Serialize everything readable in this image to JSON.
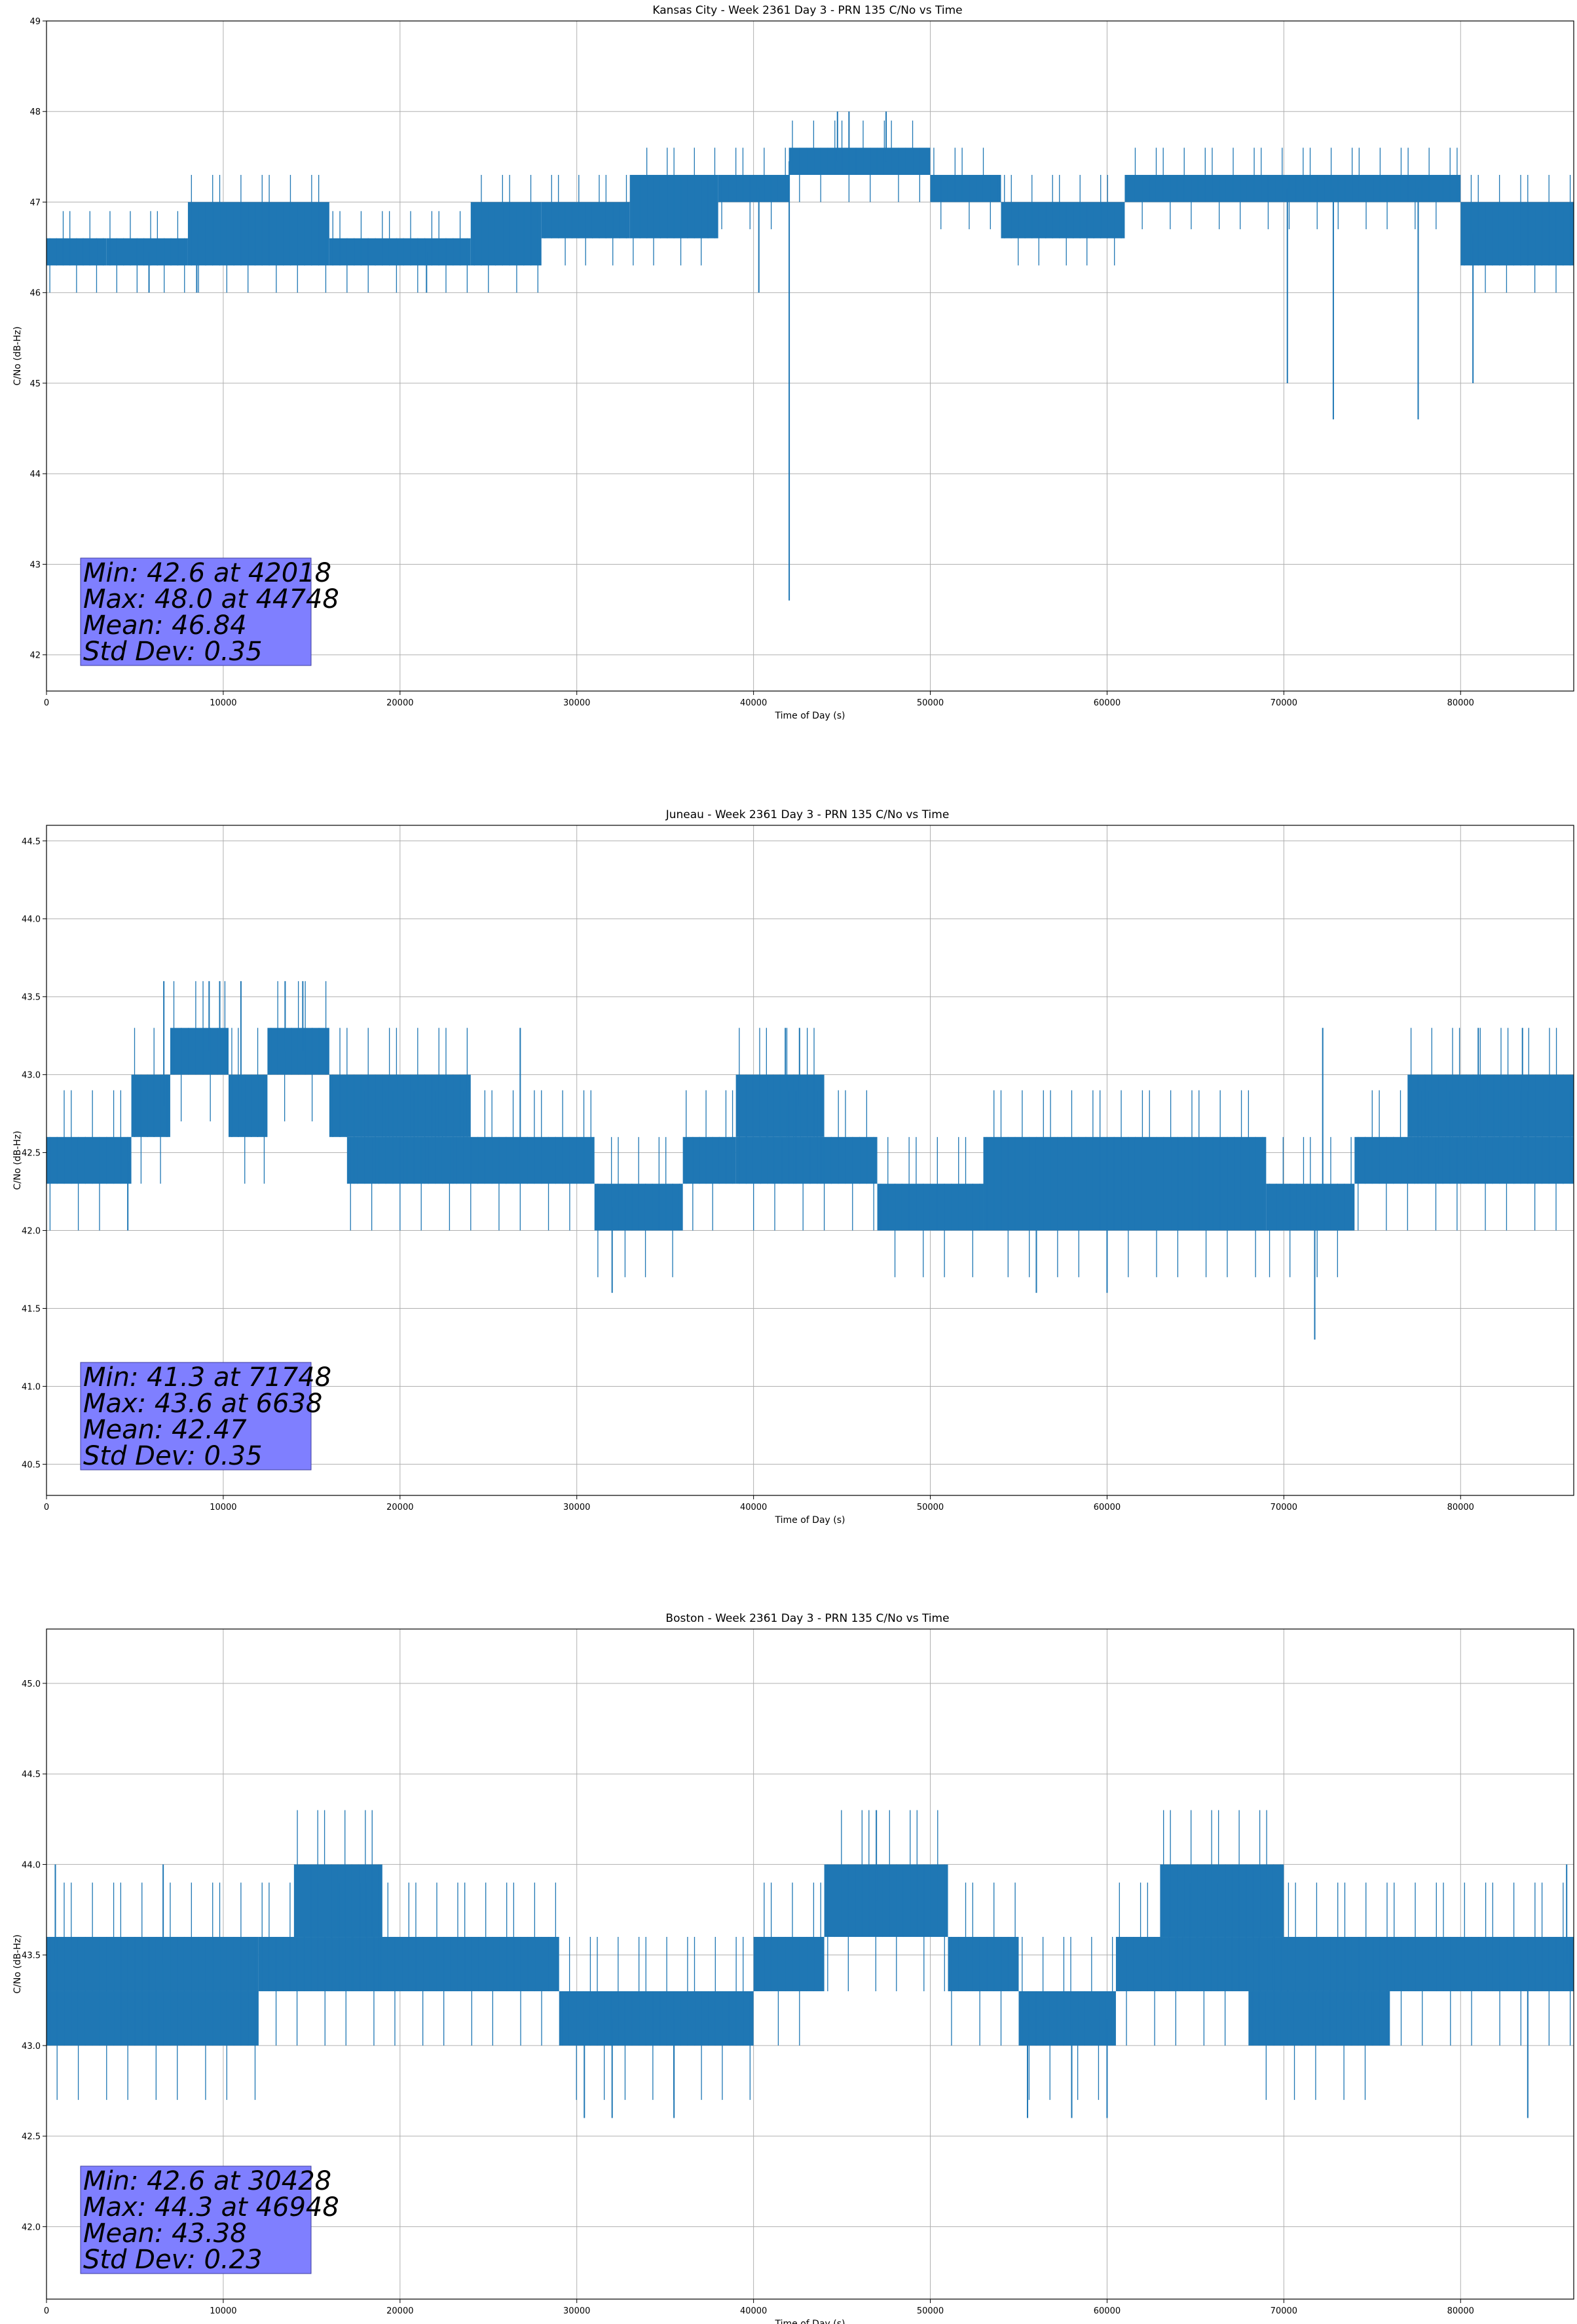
{
  "chart_data": [
    {
      "type": "line",
      "title": "Kansas City - Week 2361 Day 3 - PRN 135 C/No vs Time",
      "xlabel": "Time of Day (s)",
      "ylabel": "C/No (dB-Hz)",
      "xlim": [
        0,
        86400
      ],
      "ylim": [
        41.6,
        49.0
      ],
      "xticks": [
        0,
        10000,
        20000,
        30000,
        40000,
        50000,
        60000,
        70000,
        80000
      ],
      "xtick_labels": [
        "0",
        "10000",
        "20000",
        "30000",
        "40000",
        "50000",
        "60000",
        "70000",
        "80000"
      ],
      "yticks": [
        42,
        43,
        44,
        45,
        46,
        47,
        48,
        49
      ],
      "ytick_labels": [
        "42",
        "43",
        "44",
        "45",
        "46",
        "47",
        "48",
        "49"
      ],
      "grid": true,
      "series": [
        {
          "name": "C/No",
          "color": "#1f77b4",
          "segments": [
            {
              "x": [
                0,
                3400
              ],
              "low": 46.3,
              "high": 46.6
            },
            {
              "x": [
                3400,
                8000
              ],
              "low": 46.3,
              "high": 46.6
            },
            {
              "x": [
                8000,
                16000
              ],
              "low": 46.3,
              "high": 47.0
            },
            {
              "x": [
                16000,
                24000
              ],
              "low": 46.3,
              "high": 46.6
            },
            {
              "x": [
                24000,
                28000
              ],
              "low": 46.3,
              "high": 47.0
            },
            {
              "x": [
                28000,
                33000
              ],
              "low": 46.6,
              "high": 47.0
            },
            {
              "x": [
                33000,
                38000
              ],
              "low": 46.6,
              "high": 47.3
            },
            {
              "x": [
                38000,
                42000
              ],
              "low": 47.0,
              "high": 47.3
            },
            {
              "x": [
                42000,
                50000
              ],
              "low": 47.3,
              "high": 47.6
            },
            {
              "x": [
                50000,
                54000
              ],
              "low": 47.0,
              "high": 47.3
            },
            {
              "x": [
                54000,
                61000
              ],
              "low": 46.6,
              "high": 47.0
            },
            {
              "x": [
                61000,
                80000
              ],
              "low": 47.0,
              "high": 47.3
            },
            {
              "x": [
                80000,
                86400
              ],
              "low": 46.3,
              "high": 47.0
            }
          ],
          "spikes": [
            {
              "x": 42018,
              "y": 42.6
            },
            {
              "x": 40300,
              "y": 46.0
            },
            {
              "x": 44748,
              "y": 48.0
            },
            {
              "x": 45400,
              "y": 48.0
            },
            {
              "x": 47500,
              "y": 48.0
            },
            {
              "x": 70200,
              "y": 45.0
            },
            {
              "x": 72800,
              "y": 44.6
            },
            {
              "x": 77600,
              "y": 44.6
            },
            {
              "x": 80700,
              "y": 45.0
            },
            {
              "x": 5800,
              "y": 46.0
            },
            {
              "x": 8500,
              "y": 46.0
            },
            {
              "x": 21500,
              "y": 46.0
            }
          ]
        }
      ],
      "stats": {
        "lines": [
          "Min: 42.6 at 42018",
          "Max: 48.0 at 44748",
          "Mean: 46.84",
          "Std Dev: 0.35"
        ],
        "box_color": "#7f7fff"
      }
    },
    {
      "type": "line",
      "title": "Juneau - Week 2361 Day 3 - PRN 135 C/No vs Time",
      "xlabel": "Time of Day (s)",
      "ylabel": "C/No (dB-Hz)",
      "xlim": [
        0,
        86400
      ],
      "ylim": [
        40.3,
        44.6
      ],
      "xticks": [
        0,
        10000,
        20000,
        30000,
        40000,
        50000,
        60000,
        70000,
        80000
      ],
      "xtick_labels": [
        "0",
        "10000",
        "20000",
        "30000",
        "40000",
        "50000",
        "60000",
        "70000",
        "80000"
      ],
      "yticks": [
        40.5,
        41.0,
        41.5,
        42.0,
        42.5,
        43.0,
        43.5,
        44.0,
        44.5
      ],
      "ytick_labels": [
        "40.5",
        "41.0",
        "41.5",
        "42.0",
        "42.5",
        "43.0",
        "43.5",
        "44.0",
        "44.5"
      ],
      "grid": true,
      "series": [
        {
          "name": "C/No",
          "color": "#1f77b4",
          "segments": [
            {
              "x": [
                0,
                4800
              ],
              "low": 42.3,
              "high": 42.6
            },
            {
              "x": [
                4800,
                7000
              ],
              "low": 42.6,
              "high": 43.0
            },
            {
              "x": [
                7000,
                10300
              ],
              "low": 43.0,
              "high": 43.3
            },
            {
              "x": [
                10300,
                12500
              ],
              "low": 42.6,
              "high": 43.0
            },
            {
              "x": [
                12500,
                16000
              ],
              "low": 43.0,
              "high": 43.3
            },
            {
              "x": [
                16000,
                24000
              ],
              "low": 42.6,
              "high": 43.0
            },
            {
              "x": [
                17000,
                31000
              ],
              "low": 42.3,
              "high": 42.6
            },
            {
              "x": [
                31000,
                36000
              ],
              "low": 42.0,
              "high": 42.3
            },
            {
              "x": [
                36000,
                39000
              ],
              "low": 42.3,
              "high": 42.6
            },
            {
              "x": [
                39000,
                44000
              ],
              "low": 42.6,
              "high": 43.0
            },
            {
              "x": [
                39000,
                47000
              ],
              "low": 42.3,
              "high": 42.6
            },
            {
              "x": [
                47000,
                53000
              ],
              "low": 42.0,
              "high": 42.3
            },
            {
              "x": [
                53000,
                69000
              ],
              "low": 42.0,
              "high": 42.6
            },
            {
              "x": [
                69000,
                74000
              ],
              "low": 42.0,
              "high": 42.3
            },
            {
              "x": [
                74000,
                86400
              ],
              "low": 42.3,
              "high": 42.6
            },
            {
              "x": [
                77000,
                86400
              ],
              "low": 42.6,
              "high": 43.0
            }
          ],
          "spikes": [
            {
              "x": 6638,
              "y": 43.6
            },
            {
              "x": 9200,
              "y": 43.6
            },
            {
              "x": 9800,
              "y": 43.6
            },
            {
              "x": 11000,
              "y": 43.6
            },
            {
              "x": 13500,
              "y": 43.6
            },
            {
              "x": 14500,
              "y": 43.6
            },
            {
              "x": 26800,
              "y": 43.3
            },
            {
              "x": 41800,
              "y": 43.3
            },
            {
              "x": 42600,
              "y": 43.3
            },
            {
              "x": 71748,
              "y": 41.3
            },
            {
              "x": 72200,
              "y": 43.3
            },
            {
              "x": 81000,
              "y": 43.3
            },
            {
              "x": 83500,
              "y": 43.3
            },
            {
              "x": 4600,
              "y": 42.0
            },
            {
              "x": 32000,
              "y": 41.6
            },
            {
              "x": 56000,
              "y": 41.6
            },
            {
              "x": 60000,
              "y": 41.6
            }
          ]
        }
      ],
      "stats": {
        "lines": [
          "Min: 41.3 at 71748",
          "Max: 43.6 at 6638",
          "Mean: 42.47",
          "Std Dev: 0.35"
        ],
        "box_color": "#7f7fff"
      }
    },
    {
      "type": "line",
      "title": "Boston - Week 2361 Day 3 - PRN 135 C/No vs Time",
      "xlabel": "Time of Day (s)",
      "ylabel": "C/No (dB-Hz)",
      "xlim": [
        0,
        86400
      ],
      "ylim": [
        41.6,
        45.3
      ],
      "xticks": [
        0,
        10000,
        20000,
        30000,
        40000,
        50000,
        60000,
        70000,
        80000
      ],
      "xtick_labels": [
        "0",
        "10000",
        "20000",
        "30000",
        "40000",
        "50000",
        "60000",
        "70000",
        "80000"
      ],
      "yticks": [
        42.0,
        42.5,
        43.0,
        43.5,
        44.0,
        44.5,
        45.0
      ],
      "ytick_labels": [
        "42.0",
        "42.5",
        "43.0",
        "43.5",
        "44.0",
        "44.5",
        "45.0"
      ],
      "grid": true,
      "series": [
        {
          "name": "C/No",
          "color": "#1f77b4",
          "segments": [
            {
              "x": [
                0,
                12000
              ],
              "low": 43.3,
              "high": 43.6
            },
            {
              "x": [
                0,
                12000
              ],
              "low": 43.0,
              "high": 43.3
            },
            {
              "x": [
                14000,
                19000
              ],
              "low": 43.6,
              "high": 44.0
            },
            {
              "x": [
                12000,
                29000
              ],
              "low": 43.3,
              "high": 43.6
            },
            {
              "x": [
                29000,
                40000
              ],
              "low": 43.0,
              "high": 43.3
            },
            {
              "x": [
                40000,
                44000
              ],
              "low": 43.3,
              "high": 43.6
            },
            {
              "x": [
                44000,
                51000
              ],
              "low": 43.6,
              "high": 44.0
            },
            {
              "x": [
                51000,
                55000
              ],
              "low": 43.3,
              "high": 43.6
            },
            {
              "x": [
                55000,
                60500
              ],
              "low": 43.0,
              "high": 43.3
            },
            {
              "x": [
                60500,
                86400
              ],
              "low": 43.3,
              "high": 43.6
            },
            {
              "x": [
                63000,
                70000
              ],
              "low": 43.6,
              "high": 44.0
            },
            {
              "x": [
                68000,
                76000
              ],
              "low": 43.0,
              "high": 43.3
            }
          ],
          "spikes": [
            {
              "x": 46948,
              "y": 44.3
            },
            {
              "x": 30428,
              "y": 42.6
            },
            {
              "x": 32000,
              "y": 42.6
            },
            {
              "x": 35500,
              "y": 42.6
            },
            {
              "x": 55500,
              "y": 42.6
            },
            {
              "x": 58000,
              "y": 42.6
            },
            {
              "x": 60000,
              "y": 42.6
            },
            {
              "x": 83800,
              "y": 42.6
            },
            {
              "x": 500,
              "y": 44.0
            },
            {
              "x": 6600,
              "y": 44.0
            },
            {
              "x": 86000,
              "y": 44.0
            }
          ]
        }
      ],
      "stats": {
        "lines": [
          "Min: 42.6 at 30428",
          "Max: 44.3 at 46948",
          "Mean: 43.38",
          "Std Dev: 0.23"
        ],
        "box_color": "#7f7fff"
      }
    }
  ]
}
